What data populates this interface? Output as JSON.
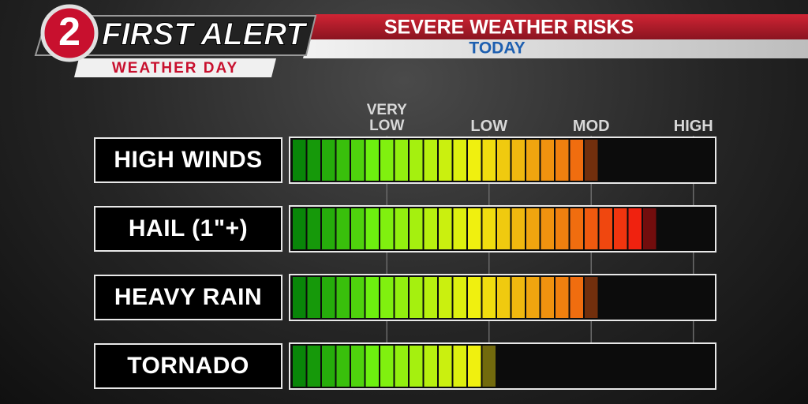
{
  "header": {
    "logo_number": "2",
    "brand": "FIRST ALERT",
    "tag": "WEATHER DAY"
  },
  "chart_data": {
    "type": "segmented-bar",
    "title": "SEVERE WEATHER RISKS",
    "subtitle": "TODAY",
    "categories": [
      "HIGH WINDS",
      "HAIL (1\"+)",
      "HEAVY RAIN",
      "TORNADO"
    ],
    "values": [
      21,
      25,
      21,
      14
    ],
    "xlim": [
      0,
      29
    ],
    "xticks": [
      {
        "value": 6.5,
        "label": "VERY LOW"
      },
      {
        "value": 13.5,
        "label": "LOW"
      },
      {
        "value": 20.5,
        "label": "MOD"
      },
      {
        "value": 27.5,
        "label": "HIGH"
      }
    ],
    "grid": true
  }
}
